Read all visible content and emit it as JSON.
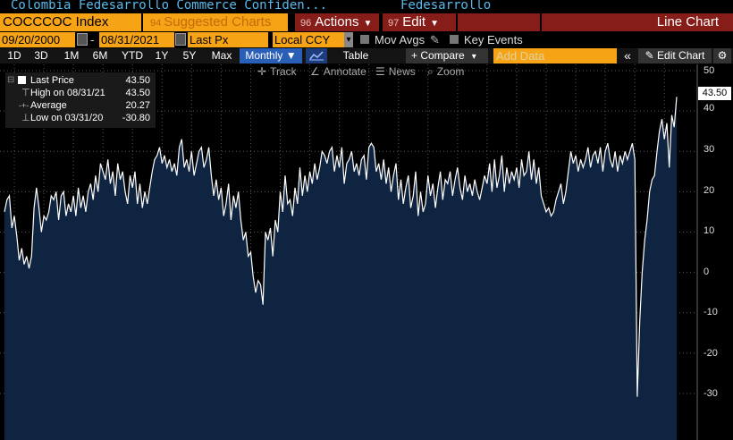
{
  "title_bar": {
    "security_name": "Colombia Fedesarrollo Commerce Confiden...",
    "source": "Fedesarrollo"
  },
  "toolbar1": {
    "ticker": "COCCCOC Index",
    "suggested_num": "94",
    "suggested": "Suggested Charts",
    "actions_num": "96",
    "actions": "Actions",
    "edit_num": "97",
    "edit": "Edit",
    "chart_type": "Line Chart"
  },
  "toolbar2": {
    "start_date": "09/20/2000",
    "date_sep": "-",
    "end_date": "08/31/2021",
    "field": "Last Px",
    "currency": "Local CCY",
    "currency_arrow": "▾",
    "mov_avgs": "Mov Avgs",
    "key_events": "Key Events"
  },
  "toolbar3": {
    "periods": [
      "1D",
      "3D",
      "1M",
      "6M",
      "YTD",
      "1Y",
      "5Y",
      "Max"
    ],
    "frequency": "Monthly ▼",
    "table": "Table",
    "compare": "+ Compare",
    "compare_arrow": "▾",
    "add_data_placeholder": "Add Data",
    "collapse": "«",
    "edit_chart": "✎ Edit Chart",
    "settings": "⚙"
  },
  "subtoolbar": {
    "track": "Track",
    "annotate": "Annotate",
    "news": "News",
    "zoom": "Zoom"
  },
  "legend": {
    "last_price_label": "Last Price",
    "last_price_value": "43.50",
    "high_label": "High on 08/31/21",
    "high_value": "43.50",
    "average_label": "Average",
    "average_value": "20.27",
    "low_label": "Low on 03/31/20",
    "low_value": "-30.80"
  },
  "last_value_flag": "43.50",
  "colors": {
    "orange": "#f6a316",
    "dark_red": "#861d18",
    "area_fill": "#0e2441",
    "line": "#ffffff",
    "blue": "#2a5fb8",
    "title_blue": "#58b9ec"
  },
  "chart_data": {
    "type": "area",
    "x_start": "2000-09",
    "x_end": "2021-08",
    "frequency": "monthly",
    "yticks": [
      50,
      40,
      30,
      20,
      10,
      0,
      -10,
      -20,
      -30
    ],
    "ytick_labels": [
      "50",
      "40",
      "30",
      "20",
      "10",
      "0",
      "-10",
      "-20",
      "-30"
    ],
    "ylim": [
      -38,
      52
    ],
    "grid": true,
    "series": [
      {
        "values": [
          15,
          18,
          19,
          11,
          14,
          9,
          3,
          6,
          2,
          4,
          1,
          4,
          16,
          21,
          16,
          10,
          14,
          13,
          15,
          19,
          18,
          20,
          13,
          19,
          20,
          14,
          17,
          15,
          19,
          14,
          21,
          16,
          19,
          15,
          20,
          22,
          18,
          24,
          20,
          27,
          25,
          23,
          28,
          22,
          25,
          19,
          27,
          23,
          25,
          20,
          17,
          24,
          21,
          25,
          17,
          22,
          16,
          20,
          17,
          21,
          25,
          28,
          29,
          31,
          27,
          29,
          26,
          28,
          25,
          27,
          24,
          31,
          33,
          26,
          28,
          25,
          30,
          24,
          27,
          30,
          31,
          26,
          28,
          31,
          24,
          19,
          23,
          18,
          21,
          14,
          17,
          22,
          13,
          19,
          16,
          20,
          13,
          8,
          10,
          4,
          5,
          -1,
          -5,
          -2,
          -3,
          -8,
          10,
          8,
          11,
          4,
          13,
          10,
          20,
          15,
          24,
          17,
          18,
          14,
          21,
          17,
          26,
          19,
          24,
          20,
          25,
          22,
          27,
          23,
          26,
          30,
          29,
          27,
          30,
          31,
          25,
          29,
          26,
          31,
          22,
          27,
          28,
          30,
          25,
          27,
          24,
          28,
          29,
          23,
          31,
          32,
          31,
          25,
          27,
          23,
          28,
          22,
          26,
          20,
          24,
          27,
          18,
          23,
          17,
          21,
          24,
          16,
          19,
          25,
          14,
          20,
          15,
          17,
          24,
          19,
          22,
          16,
          21,
          25,
          18,
          23,
          22,
          25,
          19,
          23,
          26,
          21,
          18,
          24,
          20,
          22,
          19,
          23,
          20,
          18,
          21,
          24,
          22,
          27,
          20,
          28,
          21,
          24,
          29,
          20,
          26,
          22,
          25,
          23,
          26,
          21,
          28,
          24,
          25,
          30,
          23,
          28,
          22,
          26,
          19,
          17,
          15,
          16,
          14,
          15,
          18,
          20,
          22,
          17,
          20,
          25,
          30,
          27,
          29,
          25,
          28,
          26,
          28,
          31,
          26,
          29,
          30,
          27,
          31,
          25,
          30,
          32,
          28,
          26,
          30,
          25,
          29,
          27,
          30,
          28,
          30,
          32,
          28,
          -30.8,
          -12,
          0,
          8,
          13,
          20,
          23,
          24,
          30,
          35,
          38,
          33,
          37,
          26,
          39,
          36,
          43.5
        ]
      }
    ]
  }
}
